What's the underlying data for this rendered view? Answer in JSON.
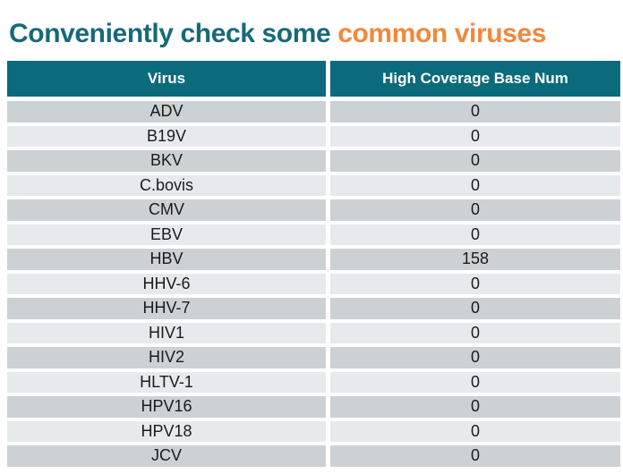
{
  "title": {
    "prefix": "Conveniently check some ",
    "highlight": "common viruses"
  },
  "table": {
    "columns": [
      "Virus",
      "High Coverage Base Num"
    ],
    "rows": [
      [
        "ADV",
        "0"
      ],
      [
        "B19V",
        "0"
      ],
      [
        "BKV",
        "0"
      ],
      [
        "C.bovis",
        "0"
      ],
      [
        "CMV",
        "0"
      ],
      [
        "EBV",
        "0"
      ],
      [
        "HBV",
        "158"
      ],
      [
        "HHV-6",
        "0"
      ],
      [
        "HHV-7",
        "0"
      ],
      [
        "HIV1",
        "0"
      ],
      [
        "HIV2",
        "0"
      ],
      [
        "HLTV-1",
        "0"
      ],
      [
        "HPV16",
        "0"
      ],
      [
        "HPV18",
        "0"
      ],
      [
        "JCV",
        "0"
      ]
    ]
  },
  "colors": {
    "title_teal": "#17697A",
    "title_orange": "#F1883B",
    "header_bg": "#0B6B7C",
    "header_text": "#FFFFFF",
    "row_dark": "#CCD2D4",
    "row_light": "#E7EAEB",
    "cell_text": "#1B1B1B"
  }
}
